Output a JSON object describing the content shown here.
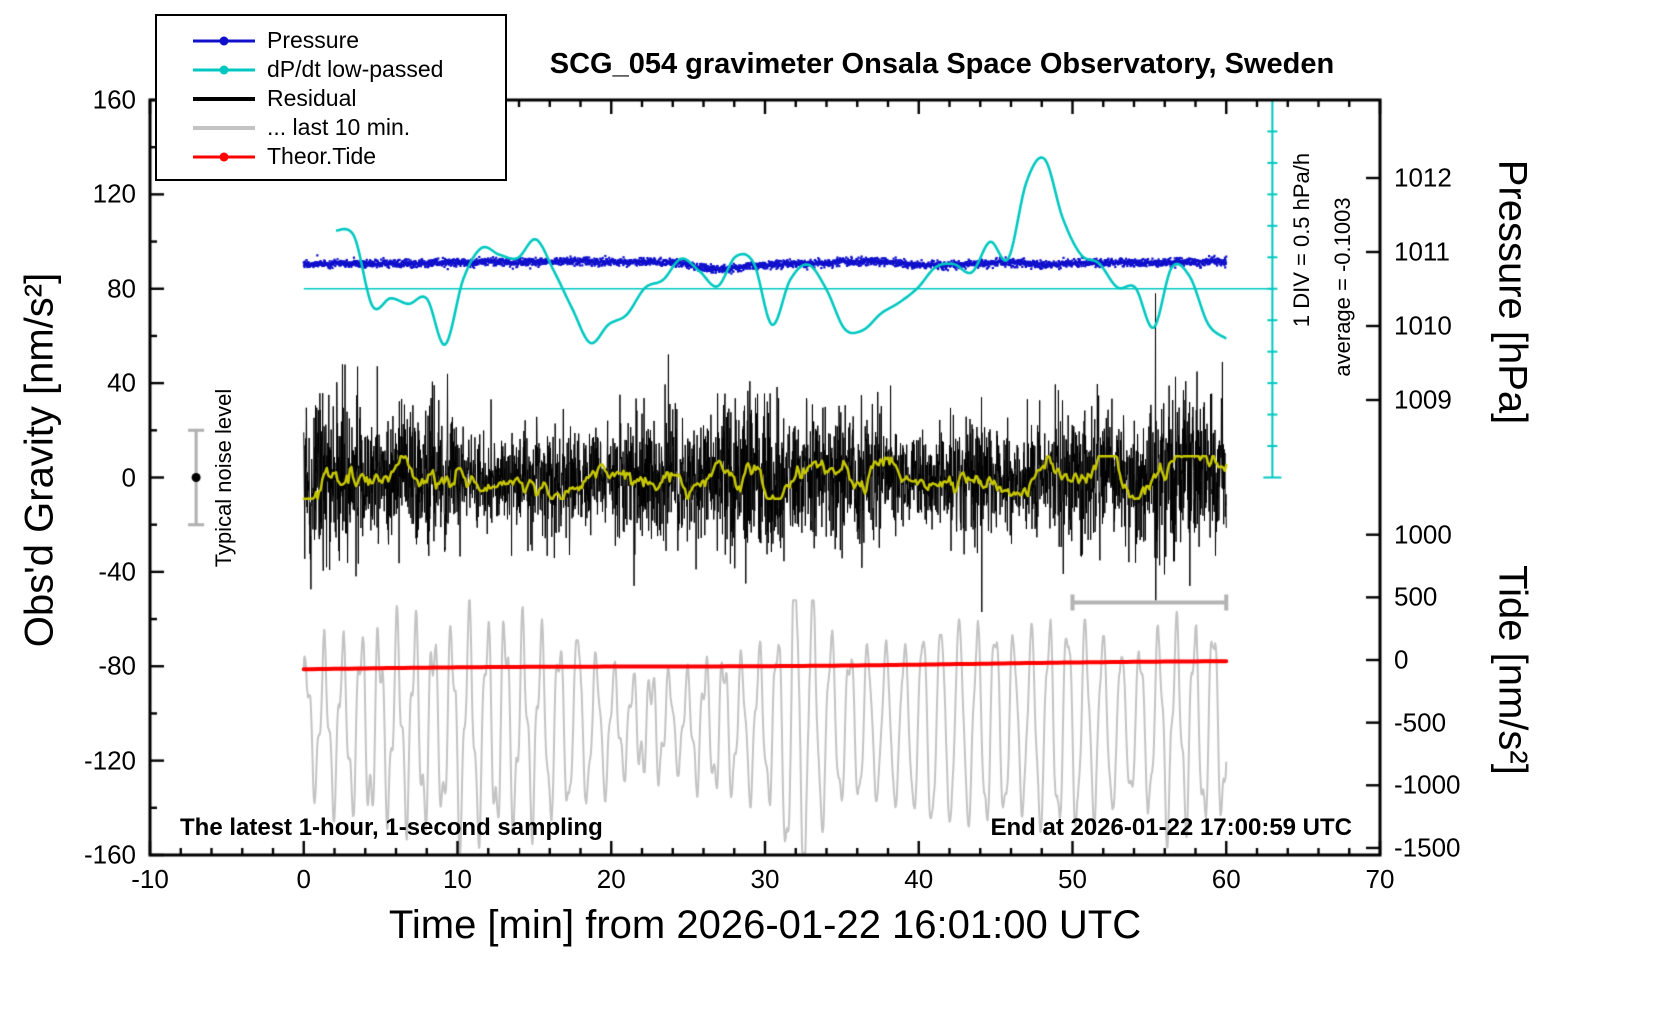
{
  "legend": {
    "items": [
      {
        "label": "Pressure",
        "color": "#1010cc",
        "thick": false,
        "dot": true
      },
      {
        "label": "dP/dt low-passed",
        "color": "#00c8c0",
        "thick": false,
        "dot": true
      },
      {
        "label": "Residual",
        "color": "#000000",
        "thick": true,
        "dot": false
      },
      {
        "label": "... last 10 min.",
        "color": "#c3c3c3",
        "thick": true,
        "dot": false
      },
      {
        "label": "Theor.Tide",
        "color": "#ff0000",
        "thick": false,
        "dot": true
      }
    ]
  },
  "chart_data": {
    "type": "line",
    "title": "SCG_054 gravimeter Onsala Space Observatory, Sweden",
    "xlabel": "Time [min] from 2026-01-22 16:01:00 UTC",
    "ylabel_left": "Obs'd Gravity [nm/s²]",
    "ylabel_pressure": "Pressure [hPa]",
    "ylabel_tide": "Tide [nm/s²]",
    "x_range": [
      -10,
      70
    ],
    "x_ticks": [
      -10,
      0,
      10,
      20,
      30,
      40,
      50,
      60,
      70
    ],
    "x_minor_step": 2,
    "y_left_range": [
      -160,
      160
    ],
    "y_left_ticks": [
      160,
      120,
      80,
      40,
      0,
      -40,
      -80,
      -120,
      -160
    ],
    "y_left_minor_step": 20,
    "pressure_ticks": [
      1012,
      1011,
      1010,
      1009
    ],
    "tide_ticks": [
      1000,
      500,
      0,
      -500,
      -1000,
      -1500
    ],
    "annotations": {
      "div_scale": "1 DIV = 0.5 hPa/h",
      "average": "average = -0.1003",
      "noise_level": "Typical noise level",
      "sampling_note": "The latest 1-hour, 1-second sampling",
      "end_time": "End at 2026-01-22 17:00:59 UTC"
    },
    "series": [
      {
        "key": "last10",
        "name": "... last 10 min.",
        "color": "#c3c3c3",
        "style": "oscillating line",
        "x_start": 0,
        "x_end": 60,
        "baseline": -105,
        "typical_amplitude": 27,
        "extreme_x": 32.3,
        "min": -159,
        "max": -52
      },
      {
        "key": "tide",
        "name": "Theor.Tide",
        "color": "#ff0000",
        "style": "line",
        "x_start": 0,
        "x_end": 60,
        "y_start": -81.3,
        "y_end": -78.1
      },
      {
        "key": "residual",
        "name": "Residual",
        "color": "#000000",
        "style": "dense noisy line, 1-second sampling",
        "x_start": 0,
        "x_end": 60,
        "mean": 0,
        "typical_band": 30,
        "max_spike": 78,
        "max_spike_x": 55.4,
        "min_spike": -57,
        "min_spike_x": 44.1
      },
      {
        "key": "residual_smooth",
        "name": "Residual low-passed (yellow overlay)",
        "color": "#c6c600",
        "style": "line",
        "x_start": 0,
        "x_end": 60,
        "mean": 0,
        "band": 7
      },
      {
        "key": "pressure",
        "name": "Pressure",
        "color": "#1010cc",
        "style": "dotted noisy line",
        "x_start": 0,
        "x_end": 60,
        "gravity_axis_level": 90.4,
        "mean_pressure_hPa": 1010.85,
        "noise_band": 3
      },
      {
        "key": "dpdt",
        "name": "dP/dt low-passed",
        "color": "#00c8c0",
        "style": "smooth oscillating line",
        "x_start": 2.1,
        "x_end": 60,
        "zero_line_gravity": 80,
        "min_gravity": 37,
        "max_gravity": 135,
        "max_x": 48,
        "div_value": "0.5 hPa/h",
        "average_hPa_per_h": -0.1003
      }
    ],
    "markers": {
      "noise_bar": {
        "x": -7,
        "y_min": -20,
        "y_max": 20,
        "dot_y": 0,
        "color": "#b0b0b0",
        "dot_color": "#000000"
      },
      "scale_bar": {
        "x_start": 50,
        "x_end": 60,
        "y": -53,
        "color": "#b4b4b4"
      },
      "dpdt_zero_line": {
        "y": 80,
        "x_start": 0,
        "x_end": 63
      },
      "dpdt_axis": {
        "x": 63,
        "y_top_gravity": 160,
        "y_bottom_gravity": 0,
        "divisions": 12,
        "color": "#00c8c0"
      }
    }
  }
}
